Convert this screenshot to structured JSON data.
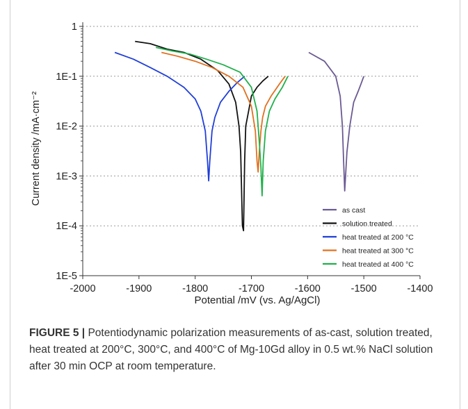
{
  "chart_data": {
    "type": "line",
    "title": "",
    "xlabel": "Potential /mV (vs. Ag/AgCl)",
    "ylabel": "Current density /mA·cm⁻²",
    "xlim": [
      -2000,
      -1400
    ],
    "ylim": [
      1e-05,
      1
    ],
    "yscale": "log",
    "xticks": [
      -2000,
      -1900,
      -1800,
      -1700,
      -1600,
      -1500,
      -1400
    ],
    "xtick_labels": [
      "-2000",
      "-1900",
      "-1800",
      "-1700",
      "-1600",
      "-1500",
      "-1400"
    ],
    "yticks": [
      1,
      0.1,
      0.01,
      0.001,
      0.0001,
      1e-05
    ],
    "ytick_labels": [
      "1",
      "1E-1",
      "1E-2",
      "1E-3",
      "1E-4",
      "1E-5"
    ],
    "grid": "horizontal dotted",
    "legend_position": "bottom-right",
    "series": [
      {
        "name": "as cast",
        "color": "#6a5a93",
        "x": [
          -1598,
          -1570,
          -1550,
          -1542,
          -1538,
          -1536,
          -1534,
          -1530,
          -1525,
          -1518,
          -1510,
          -1505,
          -1500
        ],
        "y": [
          0.3,
          0.2,
          0.1,
          0.04,
          0.01,
          0.002,
          0.0005,
          0.003,
          0.01,
          0.03,
          0.05,
          0.07,
          0.1
        ]
      },
      {
        "name": "solution treated",
        "color": "#111111",
        "x": [
          -1907,
          -1880,
          -1850,
          -1820,
          -1790,
          -1760,
          -1740,
          -1728,
          -1722,
          -1719,
          -1716,
          -1714,
          -1712,
          -1710,
          -1705,
          -1700,
          -1690,
          -1680,
          -1670
        ],
        "y": [
          0.5,
          0.45,
          0.35,
          0.3,
          0.22,
          0.13,
          0.07,
          0.03,
          0.01,
          0.003,
          0.0001,
          8e-05,
          0.002,
          0.01,
          0.02,
          0.04,
          0.06,
          0.08,
          0.1
        ]
      },
      {
        "name": "heat treated at 200 °C",
        "color": "#1f3fd8",
        "x": [
          -1943,
          -1910,
          -1880,
          -1850,
          -1820,
          -1800,
          -1790,
          -1782,
          -1778,
          -1776,
          -1774,
          -1770,
          -1765,
          -1755,
          -1740,
          -1725,
          -1712
        ],
        "y": [
          0.3,
          0.22,
          0.15,
          0.1,
          0.06,
          0.035,
          0.02,
          0.008,
          0.002,
          0.0008,
          0.002,
          0.008,
          0.015,
          0.03,
          0.05,
          0.075,
          0.1
        ]
      },
      {
        "name": "heat treated at 300 °C",
        "color": "#e0701f",
        "x": [
          -1860,
          -1830,
          -1800,
          -1770,
          -1740,
          -1715,
          -1700,
          -1693,
          -1690,
          -1688,
          -1686,
          -1683,
          -1680,
          -1675,
          -1665,
          -1650,
          -1640
        ],
        "y": [
          0.3,
          0.25,
          0.2,
          0.15,
          0.1,
          0.06,
          0.025,
          0.008,
          0.002,
          0.0012,
          0.003,
          0.008,
          0.015,
          0.025,
          0.04,
          0.07,
          0.1
        ]
      },
      {
        "name": "heat treated at 400 °C",
        "color": "#1fb04a",
        "x": [
          -1870,
          -1840,
          -1810,
          -1780,
          -1750,
          -1720,
          -1700,
          -1690,
          -1686,
          -1683,
          -1681,
          -1679,
          -1675,
          -1668,
          -1658,
          -1645,
          -1635
        ],
        "y": [
          0.38,
          0.32,
          0.28,
          0.22,
          0.17,
          0.12,
          0.06,
          0.02,
          0.005,
          0.0015,
          0.0004,
          0.002,
          0.008,
          0.02,
          0.035,
          0.06,
          0.1
        ]
      }
    ]
  },
  "caption": {
    "label": "FIGURE 5 |",
    "text": " Potentiodynamic polarization measurements of as-cast, solution treated, heat treated at 200°C, 300°C, and 400°C of Mg-10Gd alloy in 0.5 wt.% NaCl solution after 30 min OCP at room temperature."
  }
}
